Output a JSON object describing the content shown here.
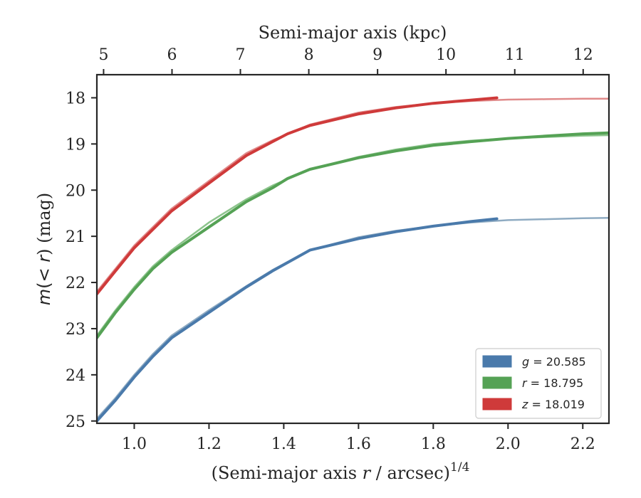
{
  "chart_data": {
    "type": "line",
    "xlabel": "(Semi-major axis r / arcsec)^{1/4}",
    "xlabel_parts": {
      "pre": "(Semi-major axis ",
      "var": "r",
      "post": " / arcsec)",
      "exp": "1/4"
    },
    "ylabel": "m(< r) (mag)",
    "ylabel_parts": {
      "var": "m",
      "mid": "(< ",
      "var2": "r",
      "post": ") (mag)"
    },
    "top_xlabel": "Semi-major axis (kpc)",
    "xlim": [
      0.9,
      2.27
    ],
    "ylim": [
      25.05,
      17.5
    ],
    "y_inverted": true,
    "x_ticks": [
      1.0,
      1.2,
      1.4,
      1.6,
      1.8,
      2.0,
      2.2
    ],
    "x_tick_labels": [
      "1.0",
      "1.2",
      "1.4",
      "1.6",
      "1.8",
      "2.0",
      "2.2"
    ],
    "y_ticks": [
      18,
      19,
      20,
      21,
      22,
      23,
      24,
      25
    ],
    "y_tick_labels": [
      "18",
      "19",
      "20",
      "21",
      "22",
      "23",
      "24",
      "25"
    ],
    "top_ticks": [
      {
        "label": "5",
        "x": 0.918
      },
      {
        "label": "6",
        "x": 1.101
      },
      {
        "label": "7",
        "x": 1.284
      },
      {
        "label": "8",
        "x": 1.467
      },
      {
        "label": "9",
        "x": 1.651
      },
      {
        "label": "10",
        "x": 1.834
      },
      {
        "label": "11",
        "x": 2.018
      },
      {
        "label": "12",
        "x": 2.201
      }
    ],
    "grid": false,
    "legend_position": "bottom-right",
    "series": [
      {
        "name": "g = 20.585",
        "legend_var": "g",
        "legend_value": "= 20.585",
        "color": "#4a7aab",
        "model_color": "#8fabc2",
        "x": [
          0.9,
          0.95,
          1.0,
          1.05,
          1.1,
          1.2,
          1.3,
          1.37,
          1.47,
          1.6,
          1.7,
          1.8,
          1.9,
          1.97
        ],
        "y": [
          25.0,
          24.55,
          24.05,
          23.6,
          23.2,
          22.65,
          22.1,
          21.75,
          21.3,
          21.05,
          20.9,
          20.78,
          20.68,
          20.62
        ],
        "model_x": [
          0.9,
          0.95,
          1.0,
          1.05,
          1.1,
          1.2,
          1.3,
          1.37,
          1.47,
          1.6,
          1.7,
          1.8,
          1.9,
          2.0,
          2.1,
          2.2,
          2.27
        ],
        "model_y": [
          24.95,
          24.5,
          24.0,
          23.55,
          23.15,
          22.6,
          22.08,
          21.73,
          21.3,
          21.02,
          20.88,
          20.78,
          20.7,
          20.65,
          20.63,
          20.61,
          20.6
        ]
      },
      {
        "name": "r = 18.795",
        "legend_var": "r",
        "legend_value": "= 18.795",
        "color": "#55a255",
        "model_color": "#8cc48c",
        "x": [
          0.9,
          0.95,
          1.0,
          1.05,
          1.1,
          1.2,
          1.3,
          1.37,
          1.41,
          1.47,
          1.6,
          1.7,
          1.8,
          1.9,
          2.0,
          2.1,
          2.2,
          2.27
        ],
        "y": [
          23.2,
          22.65,
          22.15,
          21.7,
          21.35,
          20.8,
          20.25,
          19.95,
          19.75,
          19.55,
          19.3,
          19.15,
          19.03,
          18.95,
          18.88,
          18.83,
          18.78,
          18.76
        ],
        "model_x": [
          0.9,
          0.95,
          1.0,
          1.05,
          1.1,
          1.2,
          1.3,
          1.37,
          1.47,
          1.6,
          1.7,
          1.8,
          1.9,
          2.0,
          2.1,
          2.2,
          2.27
        ],
        "model_y": [
          23.15,
          22.6,
          22.1,
          21.65,
          21.3,
          20.7,
          20.2,
          19.9,
          19.55,
          19.28,
          19.12,
          19.0,
          18.93,
          18.88,
          18.85,
          18.82,
          18.81
        ]
      },
      {
        "name": "z = 18.019",
        "legend_var": "z",
        "legend_value": "= 18.019",
        "color": "#cf3a3a",
        "model_color": "#e08a8a",
        "x": [
          0.9,
          0.95,
          1.0,
          1.05,
          1.1,
          1.2,
          1.3,
          1.37,
          1.41,
          1.47,
          1.6,
          1.7,
          1.8,
          1.9,
          1.97
        ],
        "y": [
          22.25,
          21.75,
          21.25,
          20.85,
          20.45,
          19.85,
          19.25,
          18.95,
          18.78,
          18.6,
          18.35,
          18.22,
          18.12,
          18.05,
          18.0
        ],
        "model_x": [
          0.9,
          0.95,
          1.0,
          1.05,
          1.1,
          1.2,
          1.3,
          1.37,
          1.47,
          1.6,
          1.7,
          1.8,
          1.9,
          2.0,
          2.1,
          2.2,
          2.27
        ],
        "model_y": [
          22.2,
          21.7,
          21.2,
          20.8,
          20.4,
          19.8,
          19.2,
          18.92,
          18.58,
          18.32,
          18.2,
          18.12,
          18.07,
          18.04,
          18.03,
          18.02,
          18.02
        ]
      }
    ]
  }
}
